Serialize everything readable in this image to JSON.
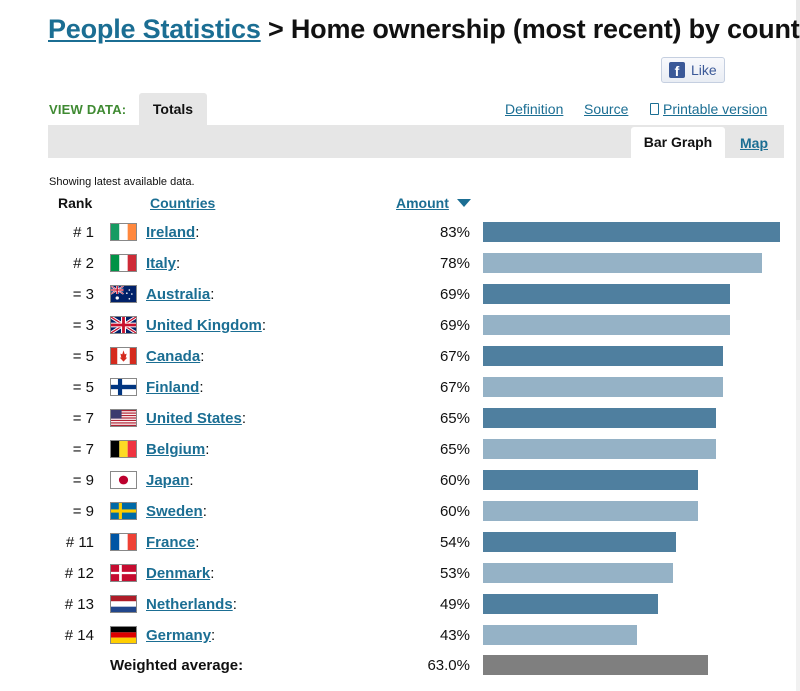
{
  "header": {
    "title_link": "People Statistics",
    "title_rest": "> Home ownership (most recent) by country",
    "like_label": "Like"
  },
  "toolbar": {
    "view_data_label": "VIEW DATA:",
    "totals_tab": "Totals",
    "definition": "Definition",
    "source": "Source",
    "printable": "Printable version",
    "bar_graph_tab": "Bar Graph",
    "map_tab": "Map"
  },
  "table": {
    "note": "Showing latest available data.",
    "rank_header": "Rank",
    "countries_header": "Countries",
    "amount_header": "Amount",
    "rows": [
      {
        "rank": "# 1",
        "country": "Ireland",
        "amount": "83%",
        "flag": "ireland"
      },
      {
        "rank": "# 2",
        "country": "Italy",
        "amount": "78%",
        "flag": "italy"
      },
      {
        "rank": "= 3",
        "country": "Australia",
        "amount": "69%",
        "flag": "australia"
      },
      {
        "rank": "= 3",
        "country": "United Kingdom",
        "amount": "69%",
        "flag": "uk"
      },
      {
        "rank": "= 5",
        "country": "Canada",
        "amount": "67%",
        "flag": "canada"
      },
      {
        "rank": "= 5",
        "country": "Finland",
        "amount": "67%",
        "flag": "finland"
      },
      {
        "rank": "= 7",
        "country": "United States",
        "amount": "65%",
        "flag": "usa"
      },
      {
        "rank": "= 7",
        "country": "Belgium",
        "amount": "65%",
        "flag": "belgium"
      },
      {
        "rank": "= 9",
        "country": "Japan",
        "amount": "60%",
        "flag": "japan"
      },
      {
        "rank": "= 9",
        "country": "Sweden",
        "amount": "60%",
        "flag": "sweden"
      },
      {
        "rank": "# 11",
        "country": "France",
        "amount": "54%",
        "flag": "france"
      },
      {
        "rank": "# 12",
        "country": "Denmark",
        "amount": "53%",
        "flag": "denmark"
      },
      {
        "rank": "# 13",
        "country": "Netherlands",
        "amount": "49%",
        "flag": "netherlands"
      },
      {
        "rank": "# 14",
        "country": "Germany",
        "amount": "43%",
        "flag": "germany"
      }
    ],
    "average_label": "Weighted average:",
    "average_value": "63.0%"
  },
  "colors": {
    "link": "#1b6e93",
    "bar_dark": "#4f7f9f",
    "bar_light": "#95b2c6",
    "bar_average": "#7f7f7f",
    "view_label": "#3f8a32"
  },
  "chart_data": {
    "type": "bar",
    "orientation": "horizontal",
    "categories": [
      "Ireland",
      "Italy",
      "Australia",
      "United Kingdom",
      "Canada",
      "Finland",
      "United States",
      "Belgium",
      "Japan",
      "Sweden",
      "France",
      "Denmark",
      "Netherlands",
      "Germany"
    ],
    "values": [
      83,
      78,
      69,
      69,
      67,
      67,
      65,
      65,
      60,
      60,
      54,
      53,
      49,
      43
    ],
    "average": 63.0,
    "unit": "%",
    "xlim": [
      0,
      83
    ]
  }
}
